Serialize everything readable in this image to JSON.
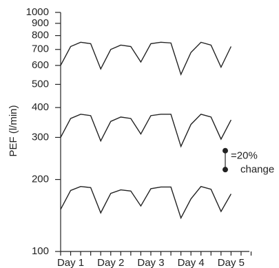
{
  "chart_data": {
    "type": "line",
    "y_label": "PEF (l/min)",
    "log_y": true,
    "x": [
      0,
      1,
      2,
      3,
      4,
      5,
      6,
      7,
      8,
      9,
      10,
      11,
      12,
      13,
      14,
      15,
      16,
      17
    ],
    "xlim": [
      0,
      19
    ],
    "xticks": [
      {
        "value": 1,
        "label": "Day 1"
      },
      {
        "value": 5,
        "label": "Day 2"
      },
      {
        "value": 9,
        "label": "Day 3"
      },
      {
        "value": 13,
        "label": "Day 4"
      },
      {
        "value": 17,
        "label": "Day 5"
      }
    ],
    "xminor_ticks": [
      0,
      1,
      2,
      3,
      4,
      5,
      6,
      7,
      8,
      9,
      10,
      11,
      12,
      13,
      14,
      15,
      16,
      17,
      18,
      19
    ],
    "ylim": [
      100,
      1000
    ],
    "yticks": [
      100,
      200,
      300,
      400,
      500,
      600,
      700,
      800,
      900,
      1000
    ],
    "series": [
      {
        "color": "#222222",
        "values": [
          600,
          720,
          750,
          740,
          580,
          700,
          730,
          720,
          620,
          740,
          750,
          745,
          550,
          680,
          750,
          730,
          590,
          720
        ]
      },
      {
        "color": "#222222",
        "values": [
          300,
          360,
          375,
          370,
          290,
          350,
          365,
          360,
          310,
          370,
          375,
          375,
          275,
          340,
          375,
          365,
          295,
          355
        ]
      },
      {
        "color": "#222222",
        "values": [
          150,
          180,
          187,
          185,
          145,
          175,
          181,
          179,
          155,
          183,
          186,
          186,
          138,
          166,
          187,
          182,
          147,
          174
        ]
      }
    ],
    "annotation": {
      "low": 220,
      "high": 264,
      "text": [
        "=20%",
        "change"
      ]
    }
  }
}
